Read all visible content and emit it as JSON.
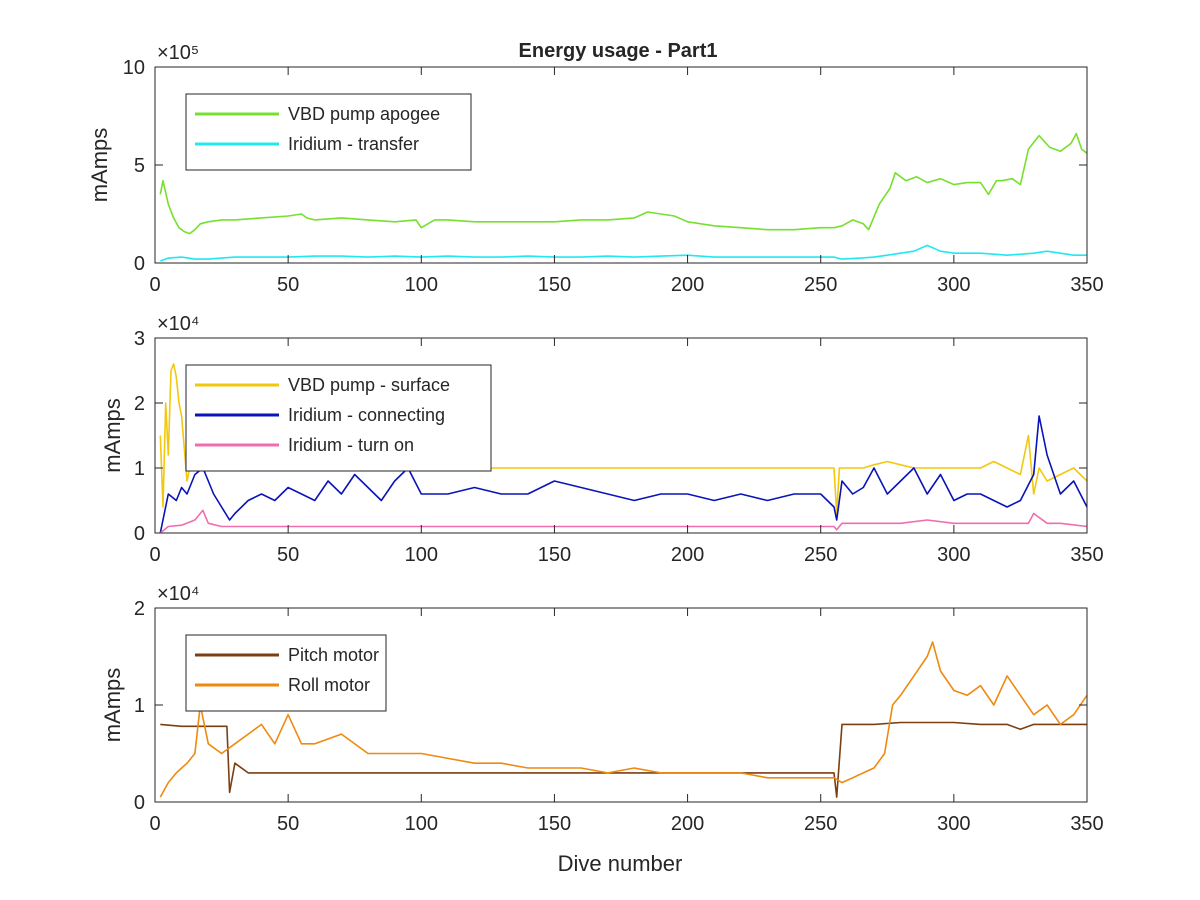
{
  "figure": {
    "title": "Energy usage - Part1",
    "xlabel": "Dive number"
  },
  "chart_data": [
    {
      "type": "line",
      "title": "Energy usage - Part1",
      "xlabel": "",
      "ylabel": "mAmps",
      "exponent_label": "×10⁵",
      "xlim": [
        0,
        350
      ],
      "ylim": [
        0,
        10
      ],
      "xticks": [
        0,
        50,
        100,
        150,
        200,
        250,
        300,
        350
      ],
      "yticks": [
        0,
        5,
        10
      ],
      "grid": false,
      "legend_position": "top-left",
      "series": [
        {
          "name": "VBD pump apogee",
          "color": "#76E02F",
          "x": [
            2,
            3,
            5,
            7,
            9,
            11,
            13,
            15,
            17,
            20,
            25,
            30,
            40,
            50,
            55,
            57,
            60,
            70,
            80,
            90,
            98,
            100,
            105,
            110,
            120,
            130,
            140,
            150,
            160,
            170,
            180,
            185,
            190,
            195,
            200,
            210,
            220,
            230,
            240,
            250,
            255,
            258,
            262,
            266,
            268,
            272,
            276,
            278,
            282,
            286,
            290,
            295,
            300,
            305,
            310,
            313,
            316,
            318,
            322,
            325,
            328,
            332,
            336,
            340,
            344,
            346,
            348,
            350
          ],
          "y": [
            3.5,
            4.2,
            3.0,
            2.3,
            1.8,
            1.6,
            1.5,
            1.7,
            2.0,
            2.1,
            2.2,
            2.2,
            2.3,
            2.4,
            2.5,
            2.3,
            2.2,
            2.3,
            2.2,
            2.1,
            2.2,
            1.8,
            2.2,
            2.2,
            2.1,
            2.1,
            2.1,
            2.1,
            2.2,
            2.2,
            2.3,
            2.6,
            2.5,
            2.4,
            2.1,
            1.9,
            1.8,
            1.7,
            1.7,
            1.8,
            1.8,
            1.9,
            2.2,
            2.0,
            1.7,
            3.0,
            3.8,
            4.6,
            4.2,
            4.4,
            4.1,
            4.3,
            4.0,
            4.1,
            4.1,
            3.5,
            4.2,
            4.2,
            4.3,
            4.0,
            5.8,
            6.5,
            5.9,
            5.7,
            6.1,
            6.6,
            5.8,
            5.6
          ]
        },
        {
          "name": "Iridium - transfer",
          "color": "#20E8F0",
          "x": [
            2,
            5,
            10,
            15,
            20,
            25,
            30,
            40,
            50,
            60,
            70,
            80,
            90,
            100,
            110,
            120,
            130,
            140,
            150,
            160,
            170,
            180,
            190,
            200,
            210,
            220,
            230,
            240,
            250,
            255,
            258,
            265,
            270,
            280,
            285,
            290,
            295,
            300,
            310,
            320,
            330,
            335,
            340,
            345,
            350
          ],
          "y": [
            0.1,
            0.25,
            0.3,
            0.2,
            0.2,
            0.25,
            0.3,
            0.3,
            0.3,
            0.35,
            0.35,
            0.3,
            0.35,
            0.3,
            0.35,
            0.3,
            0.3,
            0.35,
            0.3,
            0.3,
            0.35,
            0.3,
            0.35,
            0.4,
            0.3,
            0.3,
            0.3,
            0.3,
            0.3,
            0.3,
            0.2,
            0.25,
            0.3,
            0.5,
            0.6,
            0.9,
            0.6,
            0.5,
            0.5,
            0.4,
            0.5,
            0.6,
            0.5,
            0.4,
            0.4
          ]
        }
      ]
    },
    {
      "type": "line",
      "title": "",
      "xlabel": "",
      "ylabel": "mAmps",
      "exponent_label": "×10⁴",
      "xlim": [
        0,
        350
      ],
      "ylim": [
        0,
        3
      ],
      "xticks": [
        0,
        50,
        100,
        150,
        200,
        250,
        300,
        350
      ],
      "yticks": [
        0,
        1,
        2,
        3
      ],
      "grid": false,
      "legend_position": "top-left",
      "series": [
        {
          "name": "VBD pump - surface",
          "color": "#F2C80F",
          "x": [
            2,
            3,
            4,
            5,
            6,
            7,
            8,
            9,
            10,
            12,
            14,
            16,
            18,
            20,
            22,
            24,
            26,
            28,
            30,
            35,
            40,
            45,
            50,
            60,
            70,
            80,
            90,
            100,
            110,
            120,
            130,
            140,
            150,
            160,
            170,
            180,
            190,
            200,
            210,
            220,
            230,
            240,
            250,
            255,
            256,
            257,
            258,
            262,
            266,
            270,
            275,
            280,
            285,
            290,
            300,
            310,
            315,
            320,
            325,
            328,
            330,
            332,
            335,
            340,
            345,
            350
          ],
          "y": [
            1.5,
            0.4,
            2.0,
            1.2,
            2.5,
            2.6,
            2.4,
            2.0,
            1.8,
            0.8,
            1.2,
            1.4,
            1.0,
            1.6,
            1.2,
            1.0,
            1.2,
            1.1,
            1.0,
            1.0,
            1.0,
            1.0,
            1.0,
            1.0,
            1.0,
            1.0,
            1.0,
            1.0,
            1.0,
            1.0,
            1.0,
            1.0,
            1.0,
            1.0,
            1.0,
            1.0,
            1.0,
            1.0,
            1.0,
            1.0,
            1.0,
            1.0,
            1.0,
            1.0,
            0.3,
            1.0,
            1.0,
            1.0,
            1.0,
            1.05,
            1.1,
            1.05,
            1.0,
            1.0,
            1.0,
            1.0,
            1.1,
            1.0,
            0.9,
            1.5,
            0.6,
            1.0,
            0.8,
            0.9,
            1.0,
            0.8
          ]
        },
        {
          "name": "Iridium - connecting",
          "color": "#0A14B8",
          "x": [
            2,
            5,
            8,
            10,
            12,
            15,
            18,
            20,
            22,
            25,
            28,
            30,
            35,
            40,
            45,
            50,
            55,
            60,
            65,
            70,
            75,
            80,
            85,
            90,
            95,
            100,
            110,
            120,
            130,
            140,
            150,
            160,
            170,
            180,
            190,
            200,
            210,
            220,
            230,
            240,
            250,
            255,
            256,
            258,
            262,
            266,
            270,
            275,
            280,
            285,
            290,
            295,
            300,
            305,
            310,
            315,
            320,
            325,
            330,
            332,
            335,
            340,
            345,
            350
          ],
          "y": [
            0.0,
            0.6,
            0.5,
            0.7,
            0.6,
            0.9,
            1.0,
            0.8,
            0.6,
            0.4,
            0.2,
            0.3,
            0.5,
            0.6,
            0.5,
            0.7,
            0.6,
            0.5,
            0.8,
            0.6,
            0.9,
            0.7,
            0.5,
            0.8,
            1.0,
            0.6,
            0.6,
            0.7,
            0.6,
            0.6,
            0.8,
            0.7,
            0.6,
            0.5,
            0.6,
            0.6,
            0.5,
            0.6,
            0.5,
            0.6,
            0.6,
            0.4,
            0.2,
            0.8,
            0.6,
            0.7,
            1.0,
            0.6,
            0.8,
            1.0,
            0.6,
            0.9,
            0.5,
            0.6,
            0.6,
            0.5,
            0.4,
            0.5,
            0.9,
            1.8,
            1.2,
            0.6,
            0.8,
            0.4
          ]
        },
        {
          "name": "Iridium - turn on",
          "color": "#F06EB0",
          "x": [
            2,
            5,
            10,
            15,
            18,
            20,
            25,
            30,
            50,
            100,
            150,
            200,
            250,
            255,
            256,
            258,
            270,
            280,
            290,
            300,
            310,
            320,
            328,
            330,
            335,
            340,
            350
          ],
          "y": [
            0.0,
            0.1,
            0.12,
            0.2,
            0.35,
            0.15,
            0.1,
            0.1,
            0.1,
            0.1,
            0.1,
            0.1,
            0.1,
            0.1,
            0.05,
            0.15,
            0.15,
            0.15,
            0.2,
            0.15,
            0.15,
            0.15,
            0.15,
            0.3,
            0.15,
            0.15,
            0.1
          ]
        }
      ]
    },
    {
      "type": "line",
      "title": "",
      "xlabel": "Dive number",
      "ylabel": "mAmps",
      "exponent_label": "×10⁴",
      "xlim": [
        0,
        350
      ],
      "ylim": [
        0,
        2
      ],
      "xticks": [
        0,
        50,
        100,
        150,
        200,
        250,
        300,
        350
      ],
      "yticks": [
        0,
        1,
        2
      ],
      "grid": false,
      "legend_position": "top-left",
      "series": [
        {
          "name": "Pitch motor",
          "color": "#7B3F12",
          "x": [
            2,
            10,
            20,
            27,
            28,
            30,
            35,
            40,
            50,
            60,
            70,
            80,
            90,
            100,
            110,
            120,
            130,
            140,
            150,
            160,
            170,
            180,
            190,
            200,
            210,
            220,
            230,
            240,
            250,
            255,
            256,
            258,
            265,
            270,
            280,
            290,
            300,
            310,
            320,
            325,
            330,
            340,
            350
          ],
          "y": [
            0.8,
            0.78,
            0.78,
            0.78,
            0.1,
            0.4,
            0.3,
            0.3,
            0.3,
            0.3,
            0.3,
            0.3,
            0.3,
            0.3,
            0.3,
            0.3,
            0.3,
            0.3,
            0.3,
            0.3,
            0.3,
            0.3,
            0.3,
            0.3,
            0.3,
            0.3,
            0.3,
            0.3,
            0.3,
            0.3,
            0.05,
            0.8,
            0.8,
            0.8,
            0.82,
            0.82,
            0.82,
            0.8,
            0.8,
            0.75,
            0.8,
            0.8,
            0.8
          ]
        },
        {
          "name": "Roll motor",
          "color": "#EE8A10",
          "x": [
            2,
            5,
            8,
            12,
            15,
            17,
            20,
            25,
            30,
            35,
            40,
            45,
            50,
            55,
            60,
            70,
            80,
            90,
            100,
            110,
            120,
            130,
            140,
            150,
            160,
            170,
            180,
            190,
            200,
            210,
            220,
            230,
            240,
            250,
            255,
            258,
            262,
            266,
            270,
            274,
            277,
            280,
            285,
            290,
            292,
            295,
            300,
            305,
            310,
            315,
            320,
            325,
            330,
            335,
            340,
            345,
            350
          ],
          "y": [
            0.05,
            0.2,
            0.3,
            0.4,
            0.5,
            1.0,
            0.6,
            0.5,
            0.6,
            0.7,
            0.8,
            0.6,
            0.9,
            0.6,
            0.6,
            0.7,
            0.5,
            0.5,
            0.5,
            0.45,
            0.4,
            0.4,
            0.35,
            0.35,
            0.35,
            0.3,
            0.35,
            0.3,
            0.3,
            0.3,
            0.3,
            0.25,
            0.25,
            0.25,
            0.25,
            0.2,
            0.25,
            0.3,
            0.35,
            0.5,
            1.0,
            1.1,
            1.3,
            1.5,
            1.65,
            1.35,
            1.15,
            1.1,
            1.2,
            1.0,
            1.3,
            1.1,
            0.9,
            1.0,
            0.8,
            0.9,
            1.1
          ]
        }
      ]
    }
  ]
}
